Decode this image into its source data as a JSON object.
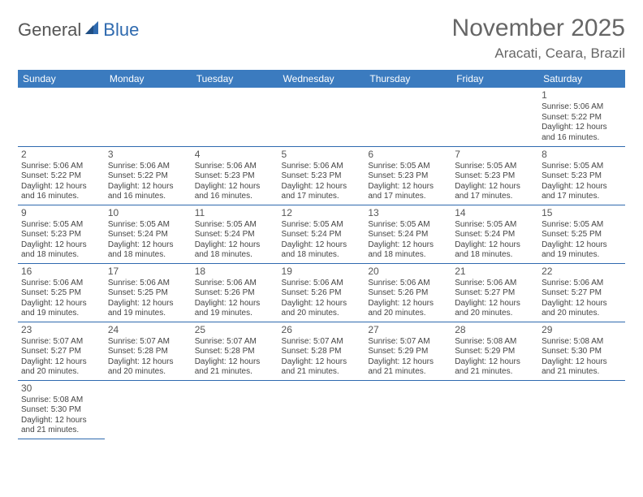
{
  "brand": {
    "part1": "General",
    "part2": "Blue"
  },
  "title": "November 2025",
  "location": "Aracati, Ceara, Brazil",
  "colors": {
    "header_bg": "#3b7bbf",
    "border": "#2f6aaf",
    "shade": "#eeeeee",
    "blank": "#f4f4f4",
    "text": "#444444",
    "title": "#666666"
  },
  "dayHeaders": [
    "Sunday",
    "Monday",
    "Tuesday",
    "Wednesday",
    "Thursday",
    "Friday",
    "Saturday"
  ],
  "firstWeekday": 6,
  "daysInMonth": 30,
  "days": {
    "1": {
      "sunrise": "5:06 AM",
      "sunset": "5:22 PM",
      "daylight": "12 hours and 16 minutes."
    },
    "2": {
      "sunrise": "5:06 AM",
      "sunset": "5:22 PM",
      "daylight": "12 hours and 16 minutes."
    },
    "3": {
      "sunrise": "5:06 AM",
      "sunset": "5:22 PM",
      "daylight": "12 hours and 16 minutes."
    },
    "4": {
      "sunrise": "5:06 AM",
      "sunset": "5:23 PM",
      "daylight": "12 hours and 16 minutes."
    },
    "5": {
      "sunrise": "5:06 AM",
      "sunset": "5:23 PM",
      "daylight": "12 hours and 17 minutes."
    },
    "6": {
      "sunrise": "5:05 AM",
      "sunset": "5:23 PM",
      "daylight": "12 hours and 17 minutes."
    },
    "7": {
      "sunrise": "5:05 AM",
      "sunset": "5:23 PM",
      "daylight": "12 hours and 17 minutes."
    },
    "8": {
      "sunrise": "5:05 AM",
      "sunset": "5:23 PM",
      "daylight": "12 hours and 17 minutes."
    },
    "9": {
      "sunrise": "5:05 AM",
      "sunset": "5:23 PM",
      "daylight": "12 hours and 18 minutes."
    },
    "10": {
      "sunrise": "5:05 AM",
      "sunset": "5:24 PM",
      "daylight": "12 hours and 18 minutes."
    },
    "11": {
      "sunrise": "5:05 AM",
      "sunset": "5:24 PM",
      "daylight": "12 hours and 18 minutes."
    },
    "12": {
      "sunrise": "5:05 AM",
      "sunset": "5:24 PM",
      "daylight": "12 hours and 18 minutes."
    },
    "13": {
      "sunrise": "5:05 AM",
      "sunset": "5:24 PM",
      "daylight": "12 hours and 18 minutes."
    },
    "14": {
      "sunrise": "5:05 AM",
      "sunset": "5:24 PM",
      "daylight": "12 hours and 18 minutes."
    },
    "15": {
      "sunrise": "5:05 AM",
      "sunset": "5:25 PM",
      "daylight": "12 hours and 19 minutes."
    },
    "16": {
      "sunrise": "5:06 AM",
      "sunset": "5:25 PM",
      "daylight": "12 hours and 19 minutes."
    },
    "17": {
      "sunrise": "5:06 AM",
      "sunset": "5:25 PM",
      "daylight": "12 hours and 19 minutes."
    },
    "18": {
      "sunrise": "5:06 AM",
      "sunset": "5:26 PM",
      "daylight": "12 hours and 19 minutes."
    },
    "19": {
      "sunrise": "5:06 AM",
      "sunset": "5:26 PM",
      "daylight": "12 hours and 20 minutes."
    },
    "20": {
      "sunrise": "5:06 AM",
      "sunset": "5:26 PM",
      "daylight": "12 hours and 20 minutes."
    },
    "21": {
      "sunrise": "5:06 AM",
      "sunset": "5:27 PM",
      "daylight": "12 hours and 20 minutes."
    },
    "22": {
      "sunrise": "5:06 AM",
      "sunset": "5:27 PM",
      "daylight": "12 hours and 20 minutes."
    },
    "23": {
      "sunrise": "5:07 AM",
      "sunset": "5:27 PM",
      "daylight": "12 hours and 20 minutes."
    },
    "24": {
      "sunrise": "5:07 AM",
      "sunset": "5:28 PM",
      "daylight": "12 hours and 20 minutes."
    },
    "25": {
      "sunrise": "5:07 AM",
      "sunset": "5:28 PM",
      "daylight": "12 hours and 21 minutes."
    },
    "26": {
      "sunrise": "5:07 AM",
      "sunset": "5:28 PM",
      "daylight": "12 hours and 21 minutes."
    },
    "27": {
      "sunrise": "5:07 AM",
      "sunset": "5:29 PM",
      "daylight": "12 hours and 21 minutes."
    },
    "28": {
      "sunrise": "5:08 AM",
      "sunset": "5:29 PM",
      "daylight": "12 hours and 21 minutes."
    },
    "29": {
      "sunrise": "5:08 AM",
      "sunset": "5:30 PM",
      "daylight": "12 hours and 21 minutes."
    },
    "30": {
      "sunrise": "5:08 AM",
      "sunset": "5:30 PM",
      "daylight": "12 hours and 21 minutes."
    }
  },
  "labels": {
    "sunrise": "Sunrise:",
    "sunset": "Sunset:",
    "daylight": "Daylight:"
  }
}
